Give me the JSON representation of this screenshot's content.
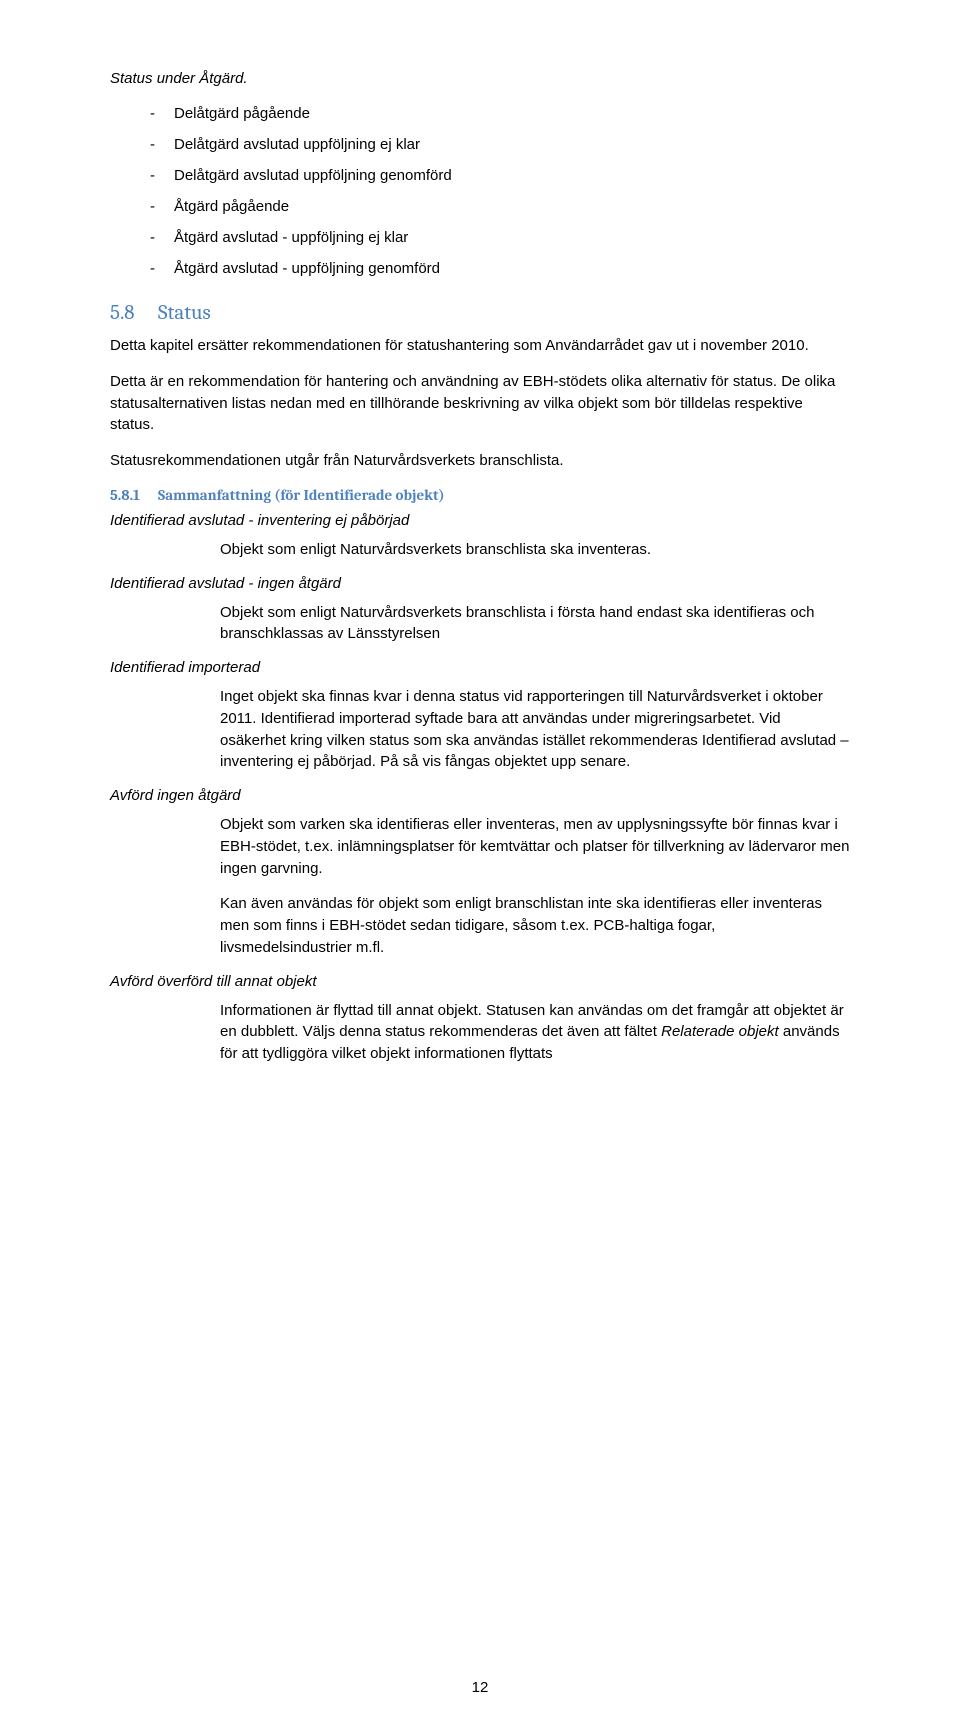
{
  "statusLine": "Status under Åtgärd.",
  "bullets": [
    "Delåtgärd pågående",
    "Delåtgärd avslutad uppföljning ej klar",
    "Delåtgärd avslutad uppföljning genomförd",
    "Åtgärd pågående",
    "Åtgärd avslutad - uppföljning ej klar",
    "Åtgärd avslutad - uppföljning genomförd"
  ],
  "h2": {
    "num": "5.8",
    "title": "Status"
  },
  "para1": "Detta kapitel ersätter rekommendationen för statushantering som Användarrådet gav ut i november 2010.",
  "para2": "Detta är en rekommendation för hantering och användning av EBH-stödets olika alternativ för status. De olika statusalternativen listas nedan med en tillhörande beskrivning av vilka objekt som bör tilldelas respektive status.",
  "para3": "Statusrekommendationen utgår från Naturvårdsverkets branschlista.",
  "h3": {
    "num": "5.8.1",
    "title": "Sammanfattning (för Identifierade objekt)"
  },
  "sections": [
    {
      "head": "Identifierad avslutad - inventering ej påbörjad",
      "paras": [
        "Objekt som enligt Naturvårdsverkets branschlista ska inventeras."
      ]
    },
    {
      "head": "Identifierad avslutad - ingen åtgärd",
      "paras": [
        "Objekt som enligt Naturvårdsverkets branschlista i första hand endast ska identifieras och branschklassas av Länsstyrelsen"
      ]
    },
    {
      "head": "Identifierad importerad",
      "paras": [
        "Inget objekt ska finnas kvar i denna status vid rapporteringen till Naturvårdsverket i oktober 2011. Identifierad importerad syftade bara att användas under migreringsarbetet. Vid osäkerhet kring vilken status som ska användas istället rekommenderas Identifierad avslutad – inventering ej påbörjad. På så vis fångas objektet upp senare."
      ]
    },
    {
      "head": "Avförd ingen åtgärd",
      "paras": [
        "Objekt som varken ska identifieras eller inventeras, men av upplysningssyfte bör finnas kvar i EBH-stödet, t.ex. inlämningsplatser för kemtvättar och platser för tillverkning av lädervaror men ingen garvning.",
        "Kan även användas för objekt som enligt branschlistan inte ska identifieras eller inventeras men som finns i EBH-stödet sedan tidigare, såsom t.ex. PCB-haltiga fogar, livsmedelsindustrier m.fl."
      ]
    }
  ],
  "lastSection": {
    "head": "Avförd överförd till annat objekt",
    "prefix": "Informationen är flyttad till annat objekt. Statusen kan användas om det framgår att objektet är en dubblett. Väljs denna status rekommenderas det även att fältet ",
    "italic": "Relaterade objekt",
    "suffix": " används för att tydliggöra vilket objekt informationen flyttats"
  },
  "pageNum": "12"
}
